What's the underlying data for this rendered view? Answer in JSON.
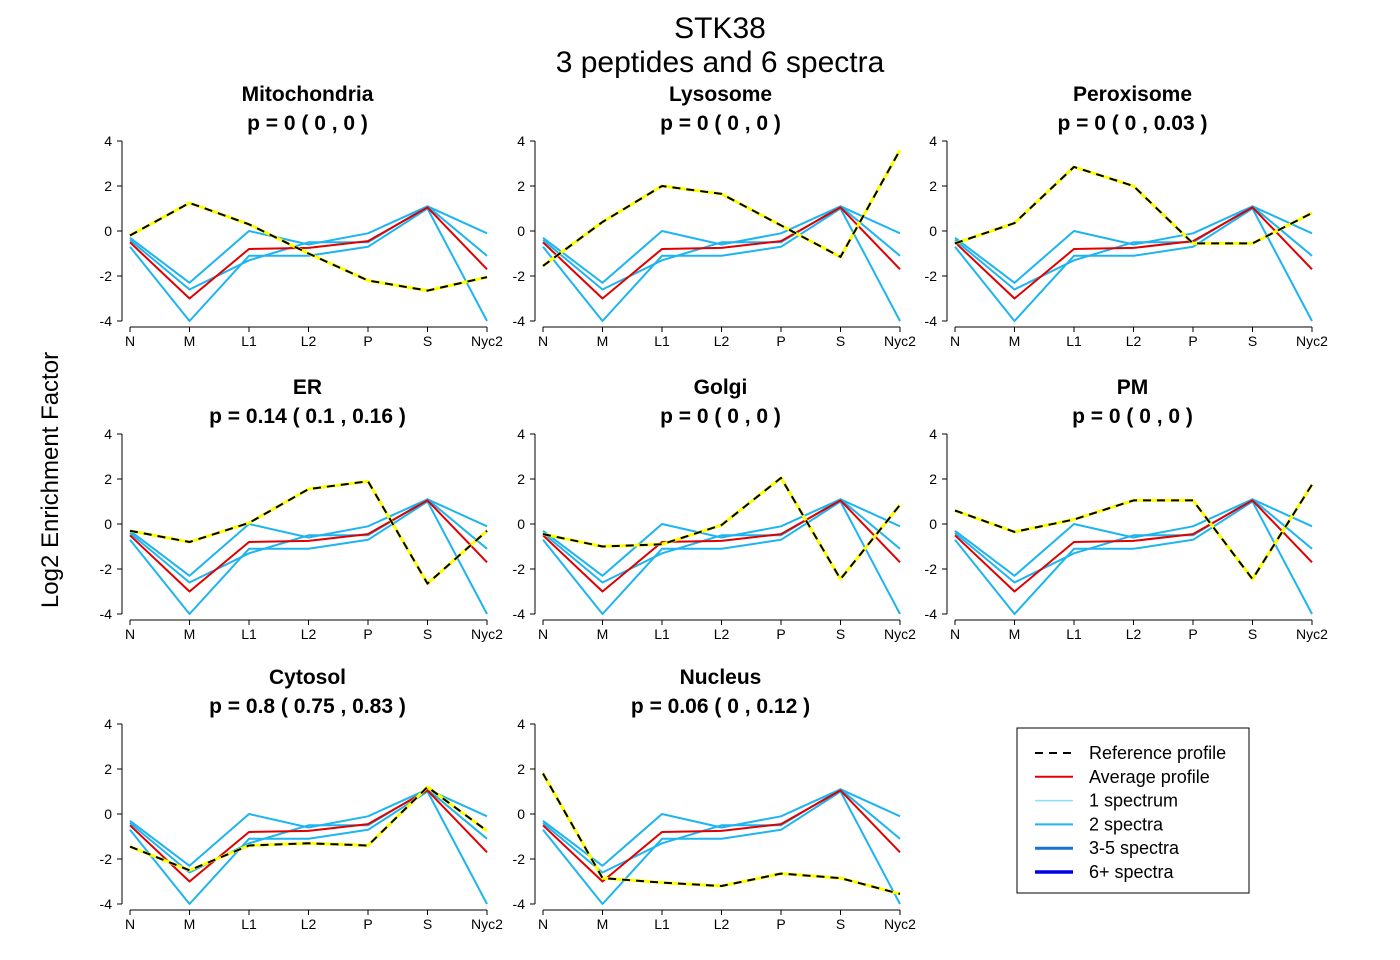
{
  "figure": {
    "title_line1": "STK38",
    "title_line2": "3  peptides and  6  spectra",
    "ylabel": "Log2 Enrichment Factor"
  },
  "colors": {
    "reference_dash": "#000000",
    "reference_under": "#FFFF00",
    "average": "#E00000",
    "one_spectrum": "#87E0FF",
    "two_spectra": "#1EB4F0",
    "three_five_spectra": "#1673D2",
    "six_plus_spectra": "#0000E6"
  },
  "legend": [
    {
      "label": "Reference profile",
      "style": "reference"
    },
    {
      "label": "Average profile",
      "style": "average"
    },
    {
      "label": "1 spectrum",
      "style": "one_spectrum"
    },
    {
      "label": "2 spectra",
      "style": "two_spectra"
    },
    {
      "label": "3-5 spectra",
      "style": "three_five_spectra"
    },
    {
      "label": "6+ spectra",
      "style": "six_plus_spectra"
    }
  ],
  "chart_data": [
    {
      "type": "line",
      "title": "Mitochondria",
      "subtitle": "p =  0  ( 0 ,  0 )",
      "categories": [
        "N",
        "M",
        "L1",
        "L2",
        "P",
        "S",
        "Nyc2"
      ],
      "ylim": [
        -4,
        4
      ],
      "yticks": [
        4,
        2,
        0,
        -2,
        -4
      ],
      "grid": false,
      "series": [
        {
          "style": "two_spectra",
          "values": [
            -0.3,
            -2.3,
            0.0,
            -0.6,
            -0.1,
            1.1,
            -0.1
          ]
        },
        {
          "style": "two_spectra",
          "values": [
            -0.7,
            -4.0,
            -1.1,
            -1.1,
            -0.7,
            1.0,
            -4.0
          ]
        },
        {
          "style": "two_spectra",
          "values": [
            -0.4,
            -2.6,
            -1.3,
            -0.5,
            -0.5,
            1.1,
            -1.1
          ]
        },
        {
          "style": "average",
          "values": [
            -0.5,
            -3.0,
            -0.8,
            -0.75,
            -0.45,
            1.05,
            -1.7
          ]
        },
        {
          "style": "reference",
          "values": [
            -0.2,
            1.25,
            0.3,
            -1.0,
            -2.2,
            -2.65,
            -2.05
          ]
        }
      ]
    },
    {
      "type": "line",
      "title": "Lysosome",
      "subtitle": "p =  0  ( 0 ,  0 )",
      "categories": [
        "N",
        "M",
        "L1",
        "L2",
        "P",
        "S",
        "Nyc2"
      ],
      "ylim": [
        -4,
        4
      ],
      "yticks": [
        4,
        2,
        0,
        -2,
        -4
      ],
      "grid": false,
      "series": [
        {
          "style": "two_spectra",
          "values": [
            -0.3,
            -2.3,
            0.0,
            -0.6,
            -0.1,
            1.1,
            -0.1
          ]
        },
        {
          "style": "two_spectra",
          "values": [
            -0.7,
            -4.0,
            -1.1,
            -1.1,
            -0.7,
            1.0,
            -4.0
          ]
        },
        {
          "style": "two_spectra",
          "values": [
            -0.4,
            -2.6,
            -1.3,
            -0.5,
            -0.5,
            1.1,
            -1.1
          ]
        },
        {
          "style": "average",
          "values": [
            -0.5,
            -3.0,
            -0.8,
            -0.75,
            -0.45,
            1.05,
            -1.7
          ]
        },
        {
          "style": "reference",
          "values": [
            -1.55,
            0.4,
            2.0,
            1.65,
            0.25,
            -1.15,
            3.6
          ]
        }
      ]
    },
    {
      "type": "line",
      "title": "Peroxisome",
      "subtitle": "p =  0  ( 0 ,  0.03 )",
      "categories": [
        "N",
        "M",
        "L1",
        "L2",
        "P",
        "S",
        "Nyc2"
      ],
      "ylim": [
        -4,
        4
      ],
      "yticks": [
        4,
        2,
        0,
        -2,
        -4
      ],
      "grid": false,
      "series": [
        {
          "style": "two_spectra",
          "values": [
            -0.3,
            -2.3,
            0.0,
            -0.6,
            -0.1,
            1.1,
            -0.1
          ]
        },
        {
          "style": "two_spectra",
          "values": [
            -0.7,
            -4.0,
            -1.1,
            -1.1,
            -0.7,
            1.0,
            -4.0
          ]
        },
        {
          "style": "two_spectra",
          "values": [
            -0.4,
            -2.6,
            -1.3,
            -0.5,
            -0.5,
            1.1,
            -1.1
          ]
        },
        {
          "style": "average",
          "values": [
            -0.5,
            -3.0,
            -0.8,
            -0.75,
            -0.45,
            1.05,
            -1.7
          ]
        },
        {
          "style": "reference",
          "values": [
            -0.55,
            0.35,
            2.85,
            2.0,
            -0.55,
            -0.55,
            0.8
          ]
        }
      ]
    },
    {
      "type": "line",
      "title": "ER",
      "subtitle": "p =  0.14  ( 0.1 ,  0.16 )",
      "categories": [
        "N",
        "M",
        "L1",
        "L2",
        "P",
        "S",
        "Nyc2"
      ],
      "ylim": [
        -4,
        4
      ],
      "yticks": [
        4,
        2,
        0,
        -2,
        -4
      ],
      "grid": false,
      "series": [
        {
          "style": "two_spectra",
          "values": [
            -0.3,
            -2.3,
            0.0,
            -0.6,
            -0.1,
            1.1,
            -0.1
          ]
        },
        {
          "style": "two_spectra",
          "values": [
            -0.7,
            -4.0,
            -1.1,
            -1.1,
            -0.7,
            1.0,
            -4.0
          ]
        },
        {
          "style": "two_spectra",
          "values": [
            -0.4,
            -2.6,
            -1.3,
            -0.5,
            -0.5,
            1.1,
            -1.1
          ]
        },
        {
          "style": "average",
          "values": [
            -0.5,
            -3.0,
            -0.8,
            -0.75,
            -0.45,
            1.05,
            -1.7
          ]
        },
        {
          "style": "reference",
          "values": [
            -0.3,
            -0.8,
            0.05,
            1.55,
            1.9,
            -2.65,
            -0.3
          ]
        }
      ]
    },
    {
      "type": "line",
      "title": "Golgi",
      "subtitle": "p =  0  ( 0 ,  0 )",
      "categories": [
        "N",
        "M",
        "L1",
        "L2",
        "P",
        "S",
        "Nyc2"
      ],
      "ylim": [
        -4,
        4
      ],
      "yticks": [
        4,
        2,
        0,
        -2,
        -4
      ],
      "grid": false,
      "series": [
        {
          "style": "two_spectra",
          "values": [
            -0.3,
            -2.3,
            0.0,
            -0.6,
            -0.1,
            1.1,
            -0.1
          ]
        },
        {
          "style": "two_spectra",
          "values": [
            -0.7,
            -4.0,
            -1.1,
            -1.1,
            -0.7,
            1.0,
            -4.0
          ]
        },
        {
          "style": "two_spectra",
          "values": [
            -0.4,
            -2.6,
            -1.3,
            -0.5,
            -0.5,
            1.1,
            -1.1
          ]
        },
        {
          "style": "average",
          "values": [
            -0.5,
            -3.0,
            -0.8,
            -0.75,
            -0.45,
            1.05,
            -1.7
          ]
        },
        {
          "style": "reference",
          "values": [
            -0.45,
            -1.0,
            -0.9,
            -0.05,
            2.05,
            -2.45,
            0.85
          ]
        }
      ]
    },
    {
      "type": "line",
      "title": "PM",
      "subtitle": "p =  0  ( 0 ,  0 )",
      "categories": [
        "N",
        "M",
        "L1",
        "L2",
        "P",
        "S",
        "Nyc2"
      ],
      "ylim": [
        -4,
        4
      ],
      "yticks": [
        4,
        2,
        0,
        -2,
        -4
      ],
      "grid": false,
      "series": [
        {
          "style": "two_spectra",
          "values": [
            -0.3,
            -2.3,
            0.0,
            -0.6,
            -0.1,
            1.1,
            -0.1
          ]
        },
        {
          "style": "two_spectra",
          "values": [
            -0.7,
            -4.0,
            -1.1,
            -1.1,
            -0.7,
            1.0,
            -4.0
          ]
        },
        {
          "style": "two_spectra",
          "values": [
            -0.4,
            -2.6,
            -1.3,
            -0.5,
            -0.5,
            1.1,
            -1.1
          ]
        },
        {
          "style": "average",
          "values": [
            -0.5,
            -3.0,
            -0.8,
            -0.75,
            -0.45,
            1.05,
            -1.7
          ]
        },
        {
          "style": "reference",
          "values": [
            0.6,
            -0.35,
            0.2,
            1.05,
            1.05,
            -2.45,
            1.75
          ]
        }
      ]
    },
    {
      "type": "line",
      "title": "Cytosol",
      "subtitle": "p =  0.8  ( 0.75 ,  0.83 )",
      "categories": [
        "N",
        "M",
        "L1",
        "L2",
        "P",
        "S",
        "Nyc2"
      ],
      "ylim": [
        -4,
        4
      ],
      "yticks": [
        4,
        2,
        0,
        -2,
        -4
      ],
      "grid": false,
      "series": [
        {
          "style": "two_spectra",
          "values": [
            -0.3,
            -2.3,
            0.0,
            -0.6,
            -0.1,
            1.1,
            -0.1
          ]
        },
        {
          "style": "two_spectra",
          "values": [
            -0.7,
            -4.0,
            -1.1,
            -1.1,
            -0.7,
            1.0,
            -4.0
          ]
        },
        {
          "style": "two_spectra",
          "values": [
            -0.4,
            -2.6,
            -1.3,
            -0.5,
            -0.5,
            1.1,
            -1.1
          ]
        },
        {
          "style": "average",
          "values": [
            -0.5,
            -3.0,
            -0.8,
            -0.75,
            -0.45,
            1.05,
            -1.7
          ]
        },
        {
          "style": "reference",
          "values": [
            -1.45,
            -2.5,
            -1.4,
            -1.3,
            -1.4,
            1.2,
            -0.75
          ]
        }
      ]
    },
    {
      "type": "line",
      "title": "Nucleus",
      "subtitle": "p =  0.06  ( 0 ,  0.12 )",
      "categories": [
        "N",
        "M",
        "L1",
        "L2",
        "P",
        "S",
        "Nyc2"
      ],
      "ylim": [
        -4,
        4
      ],
      "yticks": [
        4,
        2,
        0,
        -2,
        -4
      ],
      "grid": false,
      "series": [
        {
          "style": "two_spectra",
          "values": [
            -0.3,
            -2.3,
            0.0,
            -0.6,
            -0.1,
            1.1,
            -0.1
          ]
        },
        {
          "style": "two_spectra",
          "values": [
            -0.7,
            -4.0,
            -1.1,
            -1.1,
            -0.7,
            1.0,
            -4.0
          ]
        },
        {
          "style": "two_spectra",
          "values": [
            -0.4,
            -2.6,
            -1.3,
            -0.5,
            -0.5,
            1.1,
            -1.1
          ]
        },
        {
          "style": "average",
          "values": [
            -0.5,
            -3.0,
            -0.8,
            -0.75,
            -0.45,
            1.05,
            -1.7
          ]
        },
        {
          "style": "reference",
          "values": [
            1.8,
            -2.85,
            -3.05,
            -3.2,
            -2.65,
            -2.85,
            -3.55
          ]
        }
      ]
    }
  ]
}
